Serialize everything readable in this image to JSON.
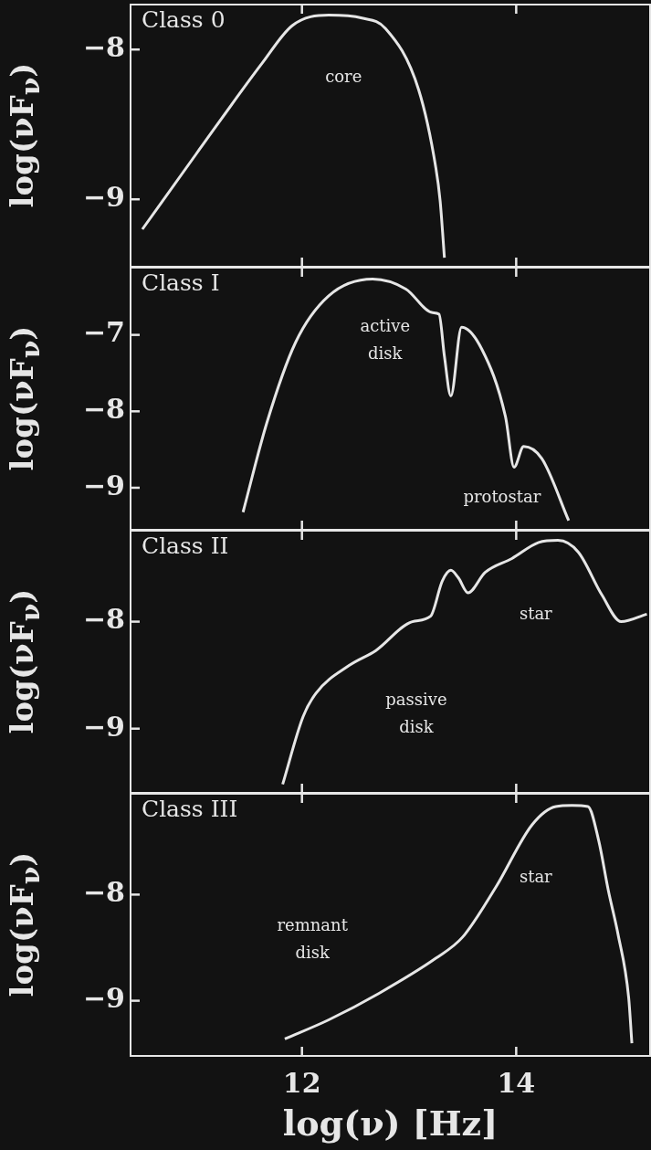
{
  "chart_data": [
    {
      "type": "line",
      "title": "Class 0",
      "ylabel": "log(νF$_{ν}$)",
      "tick_labels": "y",
      "marker": "none",
      "line_style": "solid",
      "x": [
        10.51,
        11.01,
        11.63,
        11.91,
        12.25,
        12.56,
        12.78,
        13.09,
        13.25,
        13.29,
        13.33
      ],
      "values": [
        -9.2,
        -8.7,
        -8.09,
        -7.84,
        -7.77,
        -7.79,
        -7.86,
        -8.27,
        -8.79,
        -9.01,
        -9.39
      ],
      "color": "#e6e6e6",
      "xlim": [
        10.4,
        15.25
      ],
      "ylim": [
        -9.45,
        -7.7
      ],
      "yticks": [
        {
          "value": -8,
          "label": "−8"
        },
        {
          "value": -9,
          "label": "−9"
        }
      ],
      "annotations": [
        "core"
      ]
    },
    {
      "type": "line",
      "title": "Class I",
      "ylabel": "log(νF$_{ν}$)",
      "tick_labels": "y",
      "marker": "none",
      "line_style": "solid",
      "x": [
        11.45,
        11.67,
        11.94,
        12.25,
        12.66,
        12.97,
        13.22,
        13.28,
        13.33,
        13.39,
        13.49,
        13.68,
        13.9,
        13.98,
        14.07,
        14.24,
        14.49
      ],
      "values": [
        -9.32,
        -8.16,
        -7.1,
        -6.49,
        -6.27,
        -6.4,
        -6.71,
        -6.73,
        -7.28,
        -7.8,
        -6.9,
        -7.19,
        -8.07,
        -8.73,
        -8.46,
        -8.62,
        -9.43
      ],
      "color": "#e6e6e6",
      "xlim": [
        10.4,
        15.25
      ],
      "ylim": [
        -9.55,
        -6.12
      ],
      "yticks": [
        {
          "value": -7,
          "label": "−7"
        },
        {
          "value": -8,
          "label": "−8"
        },
        {
          "value": -9,
          "label": "−9"
        }
      ],
      "annotations": [
        "active\ndisk",
        "protostar"
      ]
    },
    {
      "type": "line",
      "title": "Class II",
      "ylabel": "log(νF$_{ν}$)",
      "tick_labels": "y",
      "marker": "none",
      "line_style": "solid",
      "x": [
        11.82,
        12.01,
        12.13,
        12.44,
        12.69,
        13.03,
        13.2,
        13.31,
        13.39,
        13.46,
        13.55,
        13.71,
        13.96,
        14.21,
        14.39,
        14.58,
        14.8,
        14.98,
        15.22
      ],
      "values": [
        -9.52,
        -8.89,
        -8.67,
        -8.41,
        -8.27,
        -8.0,
        -7.95,
        -7.62,
        -7.52,
        -7.59,
        -7.73,
        -7.54,
        -7.41,
        -7.26,
        -7.24,
        -7.35,
        -7.75,
        -8.0,
        -7.93
      ],
      "color": "#e6e6e6",
      "xlim": [
        10.4,
        15.25
      ],
      "ylim": [
        -9.6,
        -7.15
      ],
      "yticks": [
        {
          "value": -8,
          "label": "−8"
        },
        {
          "value": -9,
          "label": "−9"
        }
      ],
      "annotations": [
        "passive\ndisk",
        "star"
      ]
    },
    {
      "type": "line",
      "title": "Class III",
      "ylabel": "log(νF$_{ν}$)",
      "xlabel": "log(ν) [Hz]",
      "marker": "none",
      "line_style": "solid",
      "x": [
        11.84,
        12.25,
        12.72,
        13.25,
        13.5,
        13.81,
        14.15,
        14.37,
        14.52,
        14.67,
        14.77,
        14.86,
        14.95,
        15.05,
        15.08
      ],
      "values": [
        -9.36,
        -9.18,
        -8.93,
        -8.6,
        -8.4,
        -7.93,
        -7.34,
        -7.17,
        -7.16,
        -7.17,
        -7.49,
        -7.96,
        -8.37,
        -8.97,
        -9.4
      ],
      "color": "#e6e6e6",
      "xlim": [
        10.4,
        15.25
      ],
      "xticks": [
        12,
        14
      ],
      "ylim": [
        -9.52,
        -7.05
      ],
      "yticks": [
        {
          "value": -8,
          "label": "−8"
        },
        {
          "value": -9,
          "label": "−9"
        }
      ],
      "annotations": [
        "remnant\ndisk",
        "star"
      ]
    }
  ]
}
